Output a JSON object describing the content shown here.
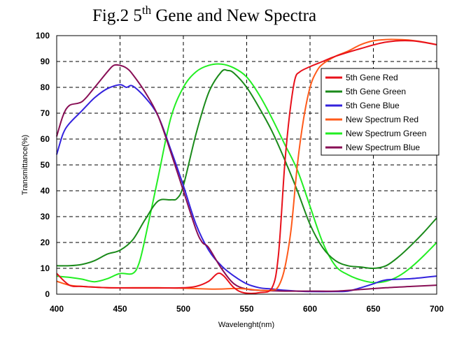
{
  "chart_data": {
    "type": "line",
    "title": {
      "main": "Fig.2 5",
      "sup": "th",
      "rest": " Gene and New Spectra"
    },
    "xlabel": "Wavelenght(nm)",
    "ylabel": "Transmittance(%)",
    "xlim": [
      400,
      700
    ],
    "ylim": [
      0,
      100
    ],
    "xticks": [
      "400",
      "450",
      "500",
      "550",
      "600",
      "650",
      "700"
    ],
    "yticks": [
      "0",
      "10",
      "20",
      "30",
      "40",
      "50",
      "60",
      "70",
      "80",
      "90",
      "100"
    ],
    "grid": "dashed",
    "legend_position": "right",
    "series": [
      {
        "name": "5th Gene Red",
        "color": "#e8101a",
        "x": [
          400,
          410,
          420,
          440,
          460,
          480,
          500,
          510,
          520,
          527,
          532,
          540,
          548,
          560,
          570,
          575,
          580,
          584,
          588,
          592,
          600,
          610,
          620,
          640,
          660,
          680,
          700
        ],
        "y": [
          8,
          3.5,
          3,
          2.5,
          2.4,
          2.4,
          2.5,
          3,
          5,
          8,
          7,
          2.5,
          0.5,
          0.6,
          2.5,
          15,
          50,
          70,
          83,
          86,
          88,
          90,
          92,
          95,
          97.5,
          98,
          96.5
        ]
      },
      {
        "name": "5th Gene Green",
        "color": "#1a8a1a",
        "x": [
          400,
          410,
          420,
          430,
          440,
          450,
          460,
          470,
          480,
          490,
          495,
          500,
          510,
          520,
          530,
          535,
          540,
          550,
          560,
          570,
          580,
          590,
          600,
          610,
          620,
          630,
          640,
          650,
          660,
          670,
          680,
          690,
          700
        ],
        "y": [
          11,
          11,
          11.5,
          13,
          15.5,
          17,
          21,
          29,
          36,
          36.5,
          37,
          42,
          62,
          78,
          86,
          86.5,
          85.5,
          80,
          72,
          63,
          52,
          40,
          27,
          18,
          13,
          11,
          10.5,
          10,
          11,
          14.5,
          19,
          24,
          29.5
        ]
      },
      {
        "name": "5th Gene Blue",
        "color": "#3322dd",
        "x": [
          400,
          405,
          410,
          420,
          430,
          440,
          450,
          455,
          460,
          470,
          480,
          490,
          500,
          510,
          520,
          530,
          540,
          550,
          560,
          570,
          580,
          590,
          600,
          620,
          630,
          640,
          650,
          660,
          680,
          700
        ],
        "y": [
          54,
          62,
          66,
          71,
          76,
          79.5,
          81,
          80,
          80.5,
          76,
          69,
          56,
          42,
          27,
          17,
          11,
          7,
          4,
          2.5,
          2,
          1.5,
          1.2,
          1,
          1,
          1.2,
          2.5,
          4,
          5.5,
          6,
          7
        ]
      },
      {
        "name": "New Spectrum Red",
        "color": "#ff5a1a",
        "x": [
          400,
          410,
          420,
          440,
          460,
          480,
          500,
          520,
          530,
          540,
          550,
          560,
          570,
          575,
          580,
          585,
          590,
          595,
          600,
          605,
          610,
          620,
          630,
          640,
          650,
          660,
          670,
          680,
          690,
          700
        ],
        "y": [
          5,
          3.5,
          3,
          2.5,
          2.5,
          2.5,
          2.3,
          2,
          2,
          2.2,
          2,
          1.5,
          1.5,
          3,
          10,
          25,
          50,
          68,
          80,
          86,
          89,
          92,
          94,
          96.5,
          98,
          98.5,
          98.5,
          98.2,
          97.5,
          96.5
        ]
      },
      {
        "name": "New Spectrum Green",
        "color": "#22ee22",
        "x": [
          400,
          410,
          420,
          430,
          440,
          450,
          460,
          465,
          470,
          480,
          490,
          500,
          510,
          520,
          530,
          540,
          550,
          560,
          570,
          580,
          590,
          600,
          610,
          620,
          630,
          640,
          650,
          660,
          670,
          680,
          690,
          700
        ],
        "y": [
          7,
          6.5,
          5.8,
          4.8,
          6,
          8,
          8,
          12,
          22,
          45,
          68,
          80,
          86,
          88.5,
          89,
          87.5,
          84,
          77,
          68,
          58,
          48,
          34,
          20,
          11,
          7.5,
          5.5,
          4.5,
          5,
          7,
          10.5,
          15,
          20
        ]
      },
      {
        "name": "New Spectrum Blue",
        "color": "#880e55",
        "x": [
          400,
          405,
          410,
          420,
          430,
          440,
          445,
          450,
          455,
          460,
          470,
          480,
          490,
          500,
          510,
          515,
          520,
          530,
          540,
          550,
          560,
          580,
          600,
          620,
          640,
          660,
          680,
          700
        ],
        "y": [
          61,
          69,
          73,
          74.5,
          80,
          86,
          88.5,
          88.5,
          87.5,
          85,
          78,
          69,
          55,
          40,
          25,
          20,
          18,
          10,
          4,
          2,
          1.5,
          1.2,
          1.2,
          1.2,
          1.8,
          2.5,
          3,
          3.5
        ]
      }
    ]
  }
}
